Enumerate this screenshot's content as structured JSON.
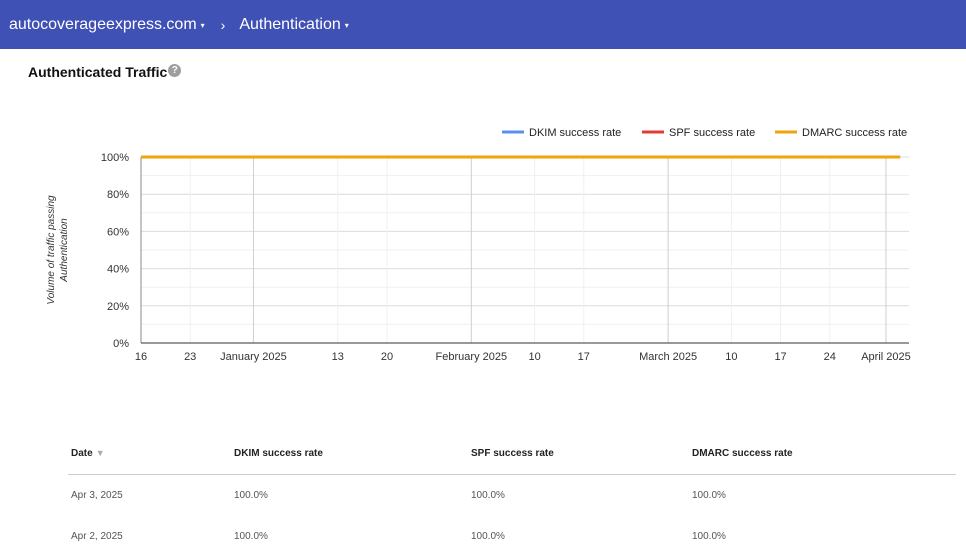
{
  "header": {
    "domain": "autocoverageexpress.com",
    "section": "Authentication",
    "separator": "›",
    "caret": "▾"
  },
  "page": {
    "title": "Authenticated Traffic",
    "help_icon": "?"
  },
  "colors": {
    "topbar": "#3f51b5",
    "dkim": "#5b8ff0",
    "spf": "#e53935",
    "dmarc": "#f0a30a"
  },
  "chart_data": {
    "type": "line",
    "ylabel": "Volume of traffic passing Authentication",
    "ylim": [
      0,
      100
    ],
    "y_ticks": [
      "0%",
      "20%",
      "40%",
      "60%",
      "80%",
      "100%"
    ],
    "x_range": [
      "2024-12-16",
      "2025-04-01"
    ],
    "x_ticks": [
      {
        "date": "2024-12-16",
        "label": "16"
      },
      {
        "date": "2024-12-23",
        "label": "23"
      },
      {
        "date": "2025-01-01",
        "label": "January 2025"
      },
      {
        "date": "2025-01-13",
        "label": "13"
      },
      {
        "date": "2025-01-20",
        "label": "20"
      },
      {
        "date": "2025-02-01",
        "label": "February 2025"
      },
      {
        "date": "2025-02-10",
        "label": "10"
      },
      {
        "date": "2025-02-17",
        "label": "17"
      },
      {
        "date": "2025-03-01",
        "label": "March 2025"
      },
      {
        "date": "2025-03-10",
        "label": "10"
      },
      {
        "date": "2025-03-17",
        "label": "17"
      },
      {
        "date": "2025-03-24",
        "label": "24"
      },
      {
        "date": "2025-04-01",
        "label": "April 2025"
      }
    ],
    "legend_position": "top-right",
    "grid": true,
    "series": [
      {
        "name": "DKIM success rate",
        "x": [
          "2024-12-16",
          "2025-04-03"
        ],
        "values": [
          100,
          100
        ]
      },
      {
        "name": "SPF success rate",
        "x": [
          "2024-12-16",
          "2025-04-03"
        ],
        "values": [
          100,
          100
        ]
      },
      {
        "name": "DMARC success rate",
        "x": [
          "2024-12-16",
          "2025-04-03"
        ],
        "values": [
          100,
          100
        ]
      }
    ]
  },
  "table": {
    "headers": {
      "date": "Date",
      "dkim": "DKIM success rate",
      "spf": "SPF success rate",
      "dmarc": "DMARC success rate"
    },
    "sort_icon": "▼",
    "rows": [
      {
        "date": "Apr 3, 2025",
        "dkim": "100.0%",
        "spf": "100.0%",
        "dmarc": "100.0%"
      },
      {
        "date": "Apr 2, 2025",
        "dkim": "100.0%",
        "spf": "100.0%",
        "dmarc": "100.0%"
      }
    ]
  }
}
